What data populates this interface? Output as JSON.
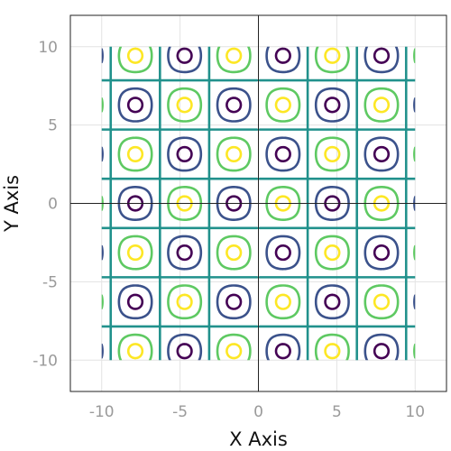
{
  "chart_data": {
    "type": "contour",
    "function": "sin(x) * cos(y)",
    "xlabel": "X Axis",
    "ylabel": "Y Axis",
    "xlim": [
      -12,
      12
    ],
    "ylim": [
      -12,
      12
    ],
    "data_extent": {
      "x": [
        -10,
        10
      ],
      "y": [
        -10,
        10
      ]
    },
    "xticks": [
      -10,
      -5,
      0,
      5,
      10
    ],
    "yticks": [
      -10,
      -5,
      0,
      5,
      10
    ],
    "xtick_labels": [
      "-10",
      "-5",
      "0",
      "5",
      "10"
    ],
    "ytick_labels": [
      "-10",
      "-5",
      "0",
      "5",
      "10"
    ],
    "grid": true,
    "zero_lines": true,
    "colormap": "viridis",
    "levels": [
      -0.9,
      -0.5,
      0,
      0.5,
      0.9
    ],
    "level_colors": [
      "#440154",
      "#3b528b",
      "#21918c",
      "#5ec962",
      "#fde725"
    ]
  }
}
